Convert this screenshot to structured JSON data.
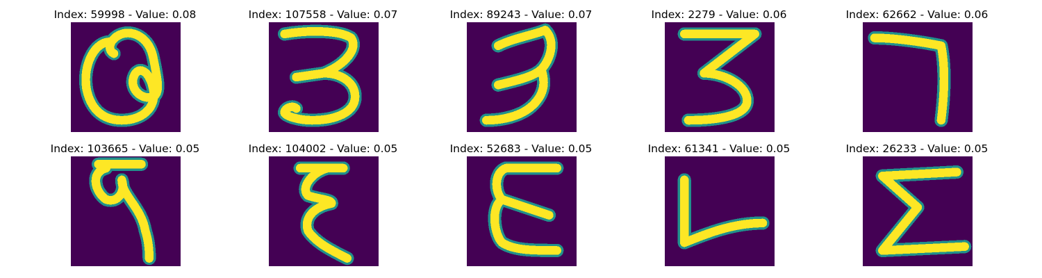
{
  "chart_data": {
    "type": "image_grid",
    "layout": "2 rows × 5 columns",
    "colormap": "viridis",
    "background_color": "#440154",
    "stroke_color": "#fde725",
    "edge_color": "#21918c",
    "panels": [
      {
        "title": "Index: 59998 - Value: 0.08",
        "index": 59998,
        "value": 0.08,
        "depicted": "a"
      },
      {
        "title": "Index: 107558 - Value: 0.07",
        "index": 107558,
        "value": 0.07,
        "depicted": "3"
      },
      {
        "title": "Index: 89243 - Value: 0.07",
        "index": 89243,
        "value": 0.07,
        "depicted": "3"
      },
      {
        "title": "Index: 2279 - Value: 0.06",
        "index": 2279,
        "value": 0.06,
        "depicted": "3"
      },
      {
        "title": "Index: 62662 - Value: 0.06",
        "index": 62662,
        "value": 0.06,
        "depicted": "7"
      },
      {
        "title": "Index: 103665 - Value: 0.05",
        "index": 103665,
        "value": 0.05,
        "depicted": "9"
      },
      {
        "title": "Index: 104002 - Value: 0.05",
        "index": 104002,
        "value": 0.05,
        "depicted": "ξ"
      },
      {
        "title": "Index: 52683 - Value: 0.05",
        "index": 52683,
        "value": 0.05,
        "depicted": "E"
      },
      {
        "title": "Index: 61341 - Value: 0.05",
        "index": 61341,
        "value": 0.05,
        "depicted": "L"
      },
      {
        "title": "Index: 26233 - Value: 0.05",
        "index": 26233,
        "value": 0.05,
        "depicted": "Σ"
      }
    ]
  }
}
